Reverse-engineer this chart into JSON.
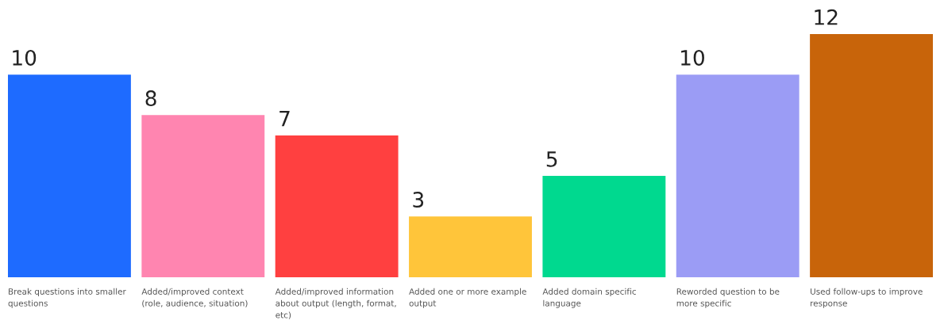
{
  "chart_data": {
    "type": "bar",
    "categories": [
      "Break questions into smaller\nquestions",
      "Added/improved context\n(role, audience, situation)",
      "Added/improved information\nabout output (length, format,\netc)",
      "Added one or more example\noutput",
      "Added domain specific\nlanguage",
      "Reworded question to be\nmore specific",
      "Used follow-ups to improve\nresponse"
    ],
    "values": [
      10,
      8,
      7,
      3,
      5,
      10,
      12
    ],
    "colors": [
      "#1e6bff",
      "#ff85b0",
      "#ff4040",
      "#ffc53a",
      "#00d98f",
      "#9b9cf5",
      "#c8640a"
    ],
    "data_labels": true
  }
}
